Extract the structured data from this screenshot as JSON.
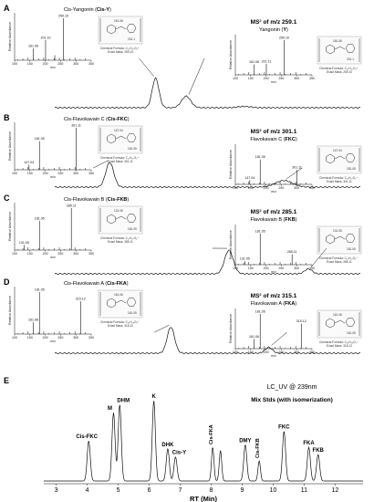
{
  "panels": [
    {
      "label": "A",
      "ms2_title": "MS",
      "ms2_sup": "2",
      "ms2_suffix": " of m/z 259.1",
      "left": {
        "name": "Cis-Yangonin (",
        "abbr": "Cis-Y",
        "close": ")",
        "peaks": [
          {
            "mz": 161.06,
            "rel": 0.28
          },
          {
            "mz": 201.1,
            "rel": 0.48
          },
          {
            "mz": 259.1,
            "rel": 1.0
          },
          {
            "mz": 231.1,
            "rel": 0.12
          }
        ],
        "labels": [
          "161.06",
          "201.10",
          "259.10"
        ],
        "formula": "Chemical Formula: C₁₅H₁₅O₄⁺",
        "mass": "Exact Mass: 259.10",
        "frag_labels": [
          "161.06",
          "231.1"
        ]
      },
      "right": {
        "name": "Yangonin (",
        "abbr": "Y",
        "close": ")",
        "peaks": [
          {
            "mz": 161.06,
            "rel": 0.3
          },
          {
            "mz": 201.11,
            "rel": 0.32
          },
          {
            "mz": 259.1,
            "rel": 1.0
          }
        ],
        "labels": [
          "161.06",
          "201.11",
          "259.10"
        ],
        "formula": "Chemical Formula: C₁₅H₁₅O₄⁺",
        "mass": "Exact Mass: 259.10",
        "frag_labels": [
          "161.06",
          "231.1"
        ]
      },
      "trace_peaks": [
        {
          "t": 0.33,
          "h": 0.9,
          "w": 0.011
        },
        {
          "t": 0.43,
          "h": 0.35,
          "w": 0.015
        },
        {
          "t": 0.62,
          "h": 0.04,
          "w": 0.02
        }
      ]
    },
    {
      "label": "B",
      "ms2_title": "MS",
      "ms2_sup": "2",
      "ms2_suffix": " of m/z 301.1",
      "left": {
        "name": "Cis-Flavokavain C (",
        "abbr": "Cis-FKC",
        "close": ")",
        "peaks": [
          {
            "mz": 147.04,
            "rel": 0.12
          },
          {
            "mz": 181.05,
            "rel": 0.68
          },
          {
            "mz": 301.11,
            "rel": 1.0
          }
        ],
        "labels": [
          "147.04",
          "181.05",
          "301.11"
        ],
        "formula": "Chemical Formula: C₁₇H₁₇O₅⁺",
        "mass": "Exact Mass: 301.11",
        "frag_labels": [
          "147.04",
          "181.05"
        ]
      },
      "right": {
        "name": "Flavokavain C (",
        "abbr": "FKC",
        "close": ")",
        "peaks": [
          {
            "mz": 147.04,
            "rel": 0.12
          },
          {
            "mz": 181.05,
            "rel": 0.72
          },
          {
            "mz": 301.11,
            "rel": 0.42
          }
        ],
        "labels": [
          "147.04",
          "181.05",
          "301.11"
        ],
        "formula": "Chemical Formula: C₁₇H₁₇O₅⁺",
        "mass": "Exact Mass: 301.11",
        "frag_labels": [
          "147.04",
          "181.05"
        ]
      },
      "trace_peaks": [
        {
          "t": 0.18,
          "h": 0.75,
          "w": 0.013
        },
        {
          "t": 0.75,
          "h": 0.2,
          "w": 0.028
        }
      ]
    },
    {
      "label": "C",
      "ms2_title": "MS",
      "ms2_sup": "2",
      "ms2_suffix": " of m/z 285.1",
      "left": {
        "name": "Cis-Flavokavain B (",
        "abbr": "Cis-FKB",
        "close": ")",
        "peaks": [
          {
            "mz": 131.05,
            "rel": 0.12
          },
          {
            "mz": 181.05,
            "rel": 0.7
          },
          {
            "mz": 285.11,
            "rel": 1.0
          }
        ],
        "labels": [
          "131.05",
          "181.05",
          "285.11"
        ],
        "formula": "Chemical Formula: C₁₇H₁₇O₄⁺",
        "mass": "Exact Mass: 285.11",
        "frag_labels": [
          "131.05",
          "181.05"
        ]
      },
      "right": {
        "name": "Flavokavain B (",
        "abbr": "FKB",
        "close": ")",
        "peaks": [
          {
            "mz": 131.05,
            "rel": 0.1
          },
          {
            "mz": 181.05,
            "rel": 0.9
          },
          {
            "mz": 285.11,
            "rel": 0.3
          }
        ],
        "labels": [
          "131.05",
          "181.05",
          "285.11"
        ],
        "formula": "Chemical Formula: C₁₇H₁₇O₄⁺",
        "mass": "Exact Mass: 285.11",
        "frag_labels": [
          "131.05",
          "181.05"
        ]
      },
      "trace_peaks": [
        {
          "t": 0.57,
          "h": 0.72,
          "w": 0.014
        },
        {
          "t": 0.83,
          "h": 0.15,
          "w": 0.012
        }
      ]
    },
    {
      "label": "D",
      "ms2_title": "MS",
      "ms2_sup": "2",
      "ms2_suffix": " of m/z 315.1",
      "left": {
        "name": "Cis-Flavokavain A (",
        "abbr": "Cis-FKA",
        "close": ")",
        "peaks": [
          {
            "mz": 161.06,
            "rel": 0.28
          },
          {
            "mz": 181.05,
            "rel": 1.0
          },
          {
            "mz": 315.12,
            "rel": 0.78
          }
        ],
        "labels": [
          "161.06",
          "181.05",
          "315.12"
        ],
        "formula": "Chemical Formula: C₁₈H₁₉O₅⁺",
        "mass": "Exact Mass: 315.12",
        "frag_labels": [
          "161.06",
          "181.05"
        ]
      },
      "right": {
        "name": "Flavokavain A (",
        "abbr": "FKA",
        "close": ")",
        "peaks": [
          {
            "mz": 161.06,
            "rel": 0.28
          },
          {
            "mz": 181.05,
            "rel": 1.0
          },
          {
            "mz": 315.12,
            "rel": 0.72
          }
        ],
        "labels": [
          "161.06",
          "181.05",
          "315.12"
        ],
        "formula": "Chemical Formula: C₁₈H₁₉O₅⁺",
        "mass": "Exact Mass: 315.12",
        "frag_labels": [
          "161.06",
          "181.05"
        ]
      },
      "trace_peaks": [
        {
          "t": 0.38,
          "h": 0.8,
          "w": 0.012
        },
        {
          "t": 0.7,
          "h": 0.18,
          "w": 0.012
        }
      ]
    }
  ],
  "axis_common": {
    "mz_ticks": [
      "100",
      "150",
      "200",
      "250",
      "300",
      "350"
    ],
    "mz_range": [
      100,
      350
    ],
    "x_label": "m/z",
    "y_label": "Relative Abundance"
  },
  "chart_data": {
    "type": "line",
    "panel_label": "E",
    "title": "LC_UV @ 239nm",
    "subtitle": "Mix Stds (with isomerization)",
    "xlabel": "RT (Min)",
    "ylabel": "",
    "xlim": [
      2.6,
      12.9
    ],
    "x_ticks": [
      "3",
      "4",
      "5",
      "6",
      "7",
      "8",
      "9",
      "10",
      "11",
      "12"
    ],
    "peaks": [
      {
        "name": "Cis-FKC",
        "rt": 4.05,
        "h": 0.5,
        "w": 0.05,
        "rot": false
      },
      {
        "name": "M",
        "rt": 4.85,
        "h": 0.85,
        "w": 0.05,
        "rot": false
      },
      {
        "name": "DHM",
        "rt": 5.05,
        "h": 0.95,
        "w": 0.05,
        "rot": false
      },
      {
        "name": "K",
        "rt": 6.15,
        "h": 1.0,
        "w": 0.05,
        "rot": false
      },
      {
        "name": "DHK",
        "rt": 6.6,
        "h": 0.4,
        "w": 0.05,
        "rot": false
      },
      {
        "name": "Cis-Y",
        "rt": 6.85,
        "h": 0.3,
        "w": 0.05,
        "rot": false
      },
      {
        "name": "Cis-FKA",
        "rt": 8.05,
        "h": 0.42,
        "w": 0.04,
        "rot": true
      },
      {
        "name": "",
        "rt": 8.3,
        "h": 0.38,
        "w": 0.04,
        "rot": false
      },
      {
        "name": "DMY",
        "rt": 9.1,
        "h": 0.45,
        "w": 0.05,
        "rot": false
      },
      {
        "name": "Cis-FKB",
        "rt": 9.55,
        "h": 0.25,
        "w": 0.04,
        "rot": true
      },
      {
        "name": "FKC",
        "rt": 10.35,
        "h": 0.62,
        "w": 0.05,
        "rot": false
      },
      {
        "name": "FKA",
        "rt": 11.15,
        "h": 0.42,
        "w": 0.05,
        "rot": false
      },
      {
        "name": "FKB",
        "rt": 11.45,
        "h": 0.33,
        "w": 0.05,
        "rot": false
      }
    ]
  }
}
